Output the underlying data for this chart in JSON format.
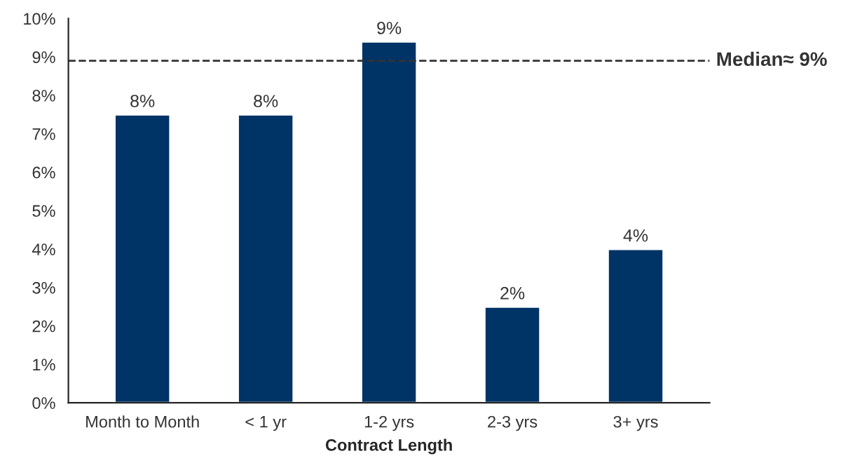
{
  "chart_data": {
    "type": "bar",
    "xlabel": "Contract Length",
    "categories": [
      "Month to Month",
      "< 1 yr",
      "1-2 yrs",
      "2-3 yrs",
      "3+ yrs"
    ],
    "values": [
      7.5,
      7.5,
      9.4,
      2.5,
      4.0
    ],
    "value_labels": [
      "8%",
      "8%",
      "9%",
      "2%",
      "4%"
    ],
    "color": "#003366",
    "ylim": [
      0,
      10
    ],
    "yticks": [
      {
        "value": 0,
        "label": "0%"
      },
      {
        "value": 1,
        "label": "1%"
      },
      {
        "value": 2,
        "label": "2%"
      },
      {
        "value": 3,
        "label": "3%"
      },
      {
        "value": 4,
        "label": "4%"
      },
      {
        "value": 5,
        "label": "5%"
      },
      {
        "value": 6,
        "label": "6%"
      },
      {
        "value": 7,
        "label": "7%"
      },
      {
        "value": 8,
        "label": "8%"
      },
      {
        "value": 9,
        "label": "9%"
      },
      {
        "value": 10,
        "label": "10%"
      }
    ],
    "ref_lines": [
      {
        "axis": "y",
        "value": 8.9,
        "label": "Median≈ 9%",
        "color": "#333333",
        "line_style": "dashed"
      }
    ],
    "grid": false
  }
}
